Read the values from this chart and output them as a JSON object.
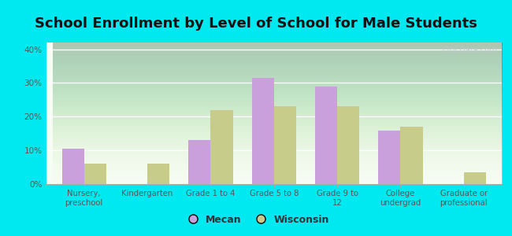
{
  "title": "School Enrollment by Level of School for Male Students",
  "categories": [
    "Nursery,\npreschool",
    "Kindergarten",
    "Grade 1 to 4",
    "Grade 5 to 8",
    "Grade 9 to\n12",
    "College\nundergrad",
    "Graduate or\nprofessional"
  ],
  "mecan": [
    10.5,
    0,
    13.0,
    31.5,
    29.0,
    15.8,
    0
  ],
  "wisconsin": [
    6.0,
    6.0,
    22.0,
    23.0,
    23.0,
    17.0,
    3.5
  ],
  "mecan_color": "#c9a0dc",
  "wisconsin_color": "#c8cc8a",
  "background_outer": "#00e8f0",
  "background_plot_top": "#f8fdf4",
  "background_plot_bottom": "#e0f0d0",
  "ylim": [
    0,
    42
  ],
  "yticks": [
    0,
    10,
    20,
    30,
    40
  ],
  "bar_width": 0.35,
  "title_fontsize": 13,
  "title_color": "#111111",
  "tick_color": "#555555",
  "legend_labels": [
    "Mecan",
    "Wisconsin"
  ],
  "watermark": "City-Data.com"
}
